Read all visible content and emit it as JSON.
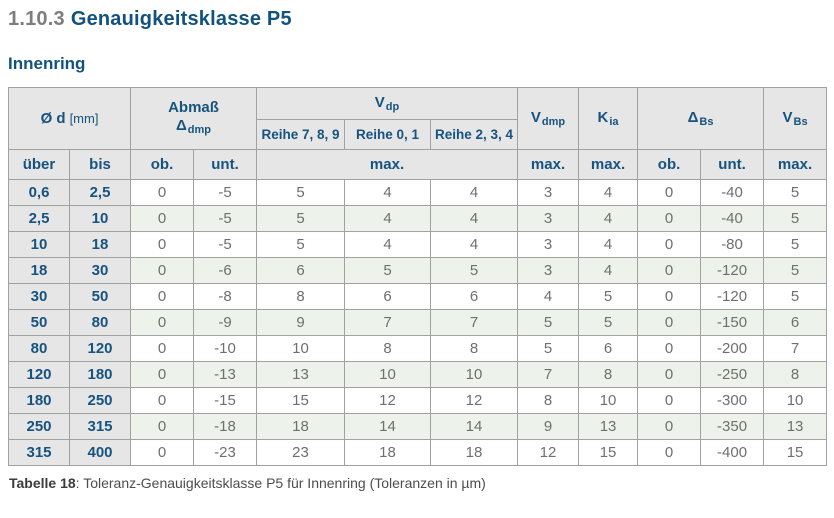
{
  "page": {
    "section_number": "1.10.3",
    "section_title": "Genauigkeitsklasse P5",
    "subtitle": "Innenring"
  },
  "colors": {
    "heading_blue": "#12527f",
    "table_text_blue": "#17537f",
    "header_bg_gray": "#e6e6e6",
    "row_alt_green": "#edf3ea",
    "value_text_gray": "#6f6f6f",
    "border_gray": "#a1a1a1"
  },
  "table": {
    "header": {
      "od_base": "Ø d",
      "od_unit": "[mm]",
      "abmass_line1": "Abmaß",
      "abmass_symbol": "Δ",
      "abmass_sub": "dmp",
      "vdp_base": "V",
      "vdp_sub": "dp",
      "reihe": [
        "Reihe 7, 8, 9",
        "Reihe 0, 1",
        "Reihe 2, 3, 4"
      ],
      "vdmp_base": "V",
      "vdmp_sub": "dmp",
      "kia_base": "K",
      "kia_sub": "ia",
      "dbs_base": "Δ",
      "dbs_sub": "Bs",
      "vbs_base": "V",
      "vbs_sub": "Bs",
      "sub": [
        "über",
        "bis",
        "ob.",
        "unt.",
        "max.",
        "max.",
        "max.",
        "ob.",
        "unt.",
        "max."
      ]
    },
    "rows": [
      [
        "0,6",
        "2,5",
        "0",
        "-5",
        "5",
        "4",
        "4",
        "3",
        "4",
        "0",
        "-40",
        "5"
      ],
      [
        "2,5",
        "10",
        "0",
        "-5",
        "5",
        "4",
        "4",
        "3",
        "4",
        "0",
        "-40",
        "5"
      ],
      [
        "10",
        "18",
        "0",
        "-5",
        "5",
        "4",
        "4",
        "3",
        "4",
        "0",
        "-80",
        "5"
      ],
      [
        "18",
        "30",
        "0",
        "-6",
        "6",
        "5",
        "5",
        "3",
        "4",
        "0",
        "-120",
        "5"
      ],
      [
        "30",
        "50",
        "0",
        "-8",
        "8",
        "6",
        "6",
        "4",
        "5",
        "0",
        "-120",
        "5"
      ],
      [
        "50",
        "80",
        "0",
        "-9",
        "9",
        "7",
        "7",
        "5",
        "5",
        "0",
        "-150",
        "6"
      ],
      [
        "80",
        "120",
        "0",
        "-10",
        "10",
        "8",
        "8",
        "5",
        "6",
        "0",
        "-200",
        "7"
      ],
      [
        "120",
        "180",
        "0",
        "-13",
        "13",
        "10",
        "10",
        "7",
        "8",
        "0",
        "-250",
        "8"
      ],
      [
        "180",
        "250",
        "0",
        "-15",
        "15",
        "12",
        "12",
        "8",
        "10",
        "0",
        "-300",
        "10"
      ],
      [
        "250",
        "315",
        "0",
        "-18",
        "18",
        "14",
        "14",
        "9",
        "13",
        "0",
        "-350",
        "13"
      ],
      [
        "315",
        "400",
        "0",
        "-23",
        "23",
        "18",
        "18",
        "12",
        "15",
        "0",
        "-400",
        "15"
      ]
    ],
    "caption_label": "Tabelle 18",
    "caption_text": ": Toleranz-Genauigkeitsklasse P5 für Innenring (Toleranzen in µm)"
  }
}
